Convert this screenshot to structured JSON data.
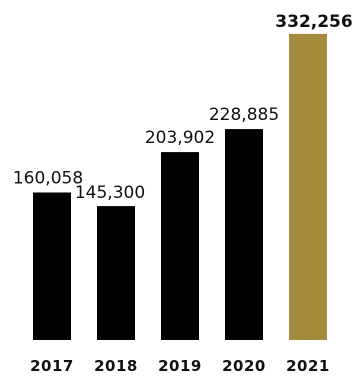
{
  "chart_data": {
    "type": "bar",
    "categories": [
      "2017",
      "2018",
      "2019",
      "2020",
      "2021"
    ],
    "values": [
      160058,
      145300,
      203902,
      228885,
      332256
    ],
    "value_labels": [
      "160,058",
      "145,300",
      "203,902",
      "228,885",
      "332,256"
    ],
    "highlight_index": 4,
    "colors": {
      "default": "#000000",
      "highlight": "#a48a3b"
    },
    "grid": false,
    "legend": "none"
  }
}
